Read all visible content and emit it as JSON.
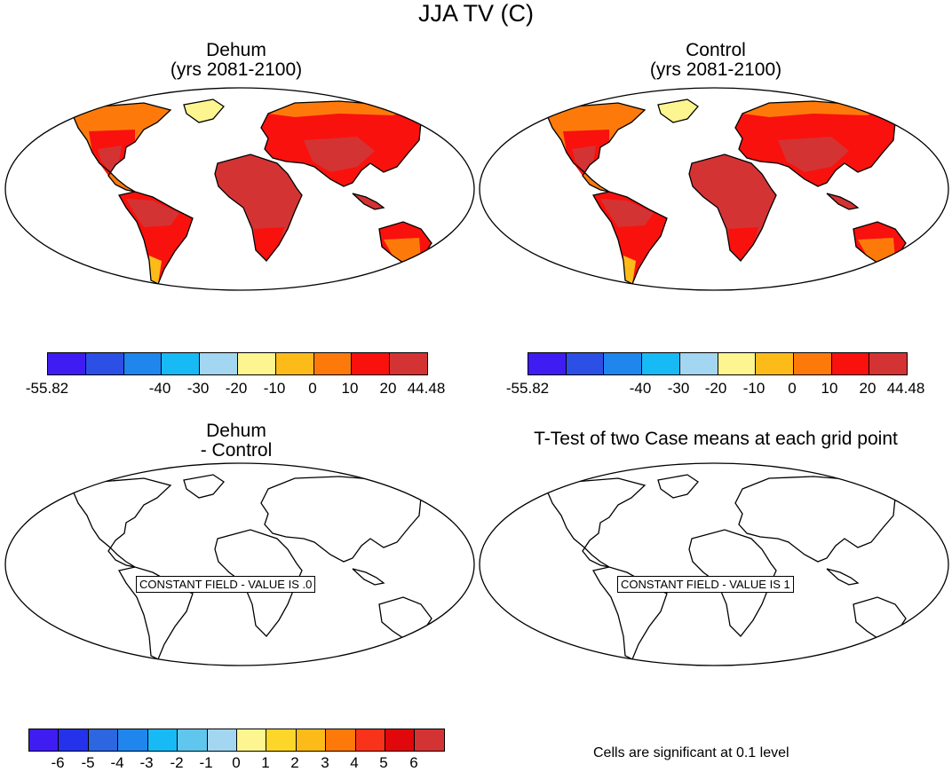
{
  "figure_title": "JJA TV (C)",
  "panels": [
    {
      "title_line1": "Dehum",
      "title_line2": "(yrs 2081-2100)"
    },
    {
      "title_line1": "Control",
      "title_line2": "(yrs 2081-2100)"
    },
    {
      "title_line1": "Dehum",
      "title_line2": "- Control",
      "constant_label": "CONSTANT FIELD - VALUE IS .0"
    },
    {
      "title_line1": "T-Test of two Case means at each grid point",
      "constant_label": "CONSTANT FIELD - VALUE IS 1"
    }
  ],
  "colorbar_top": {
    "colors": [
      "#3f1cf2",
      "#2c4fe6",
      "#1f86ee",
      "#18baf5",
      "#a3d6f0",
      "#fdf58f",
      "#fdbb1a",
      "#fd7a0a",
      "#f9110d",
      "#d43334"
    ],
    "ticks": [
      "-55.82",
      "-40",
      "-30",
      "-20",
      "-10",
      "0",
      "10",
      "20",
      "44.48"
    ]
  },
  "colorbar_bottom": {
    "colors": [
      "#3f1cf2",
      "#2532eb",
      "#2c66e0",
      "#1f86ee",
      "#18baf5",
      "#5fc6ee",
      "#a3d6f0",
      "#fdf58f",
      "#fdd62a",
      "#fdbb1a",
      "#fd7a0a",
      "#f9331a",
      "#e0080a",
      "#d43334"
    ],
    "ticks": [
      "-6",
      "-5",
      "-4",
      "-3",
      "-2",
      "-1",
      "0",
      "1",
      "2",
      "3",
      "4",
      "5",
      "6"
    ]
  },
  "significance_note": "Cells are significant at 0.1 level"
}
